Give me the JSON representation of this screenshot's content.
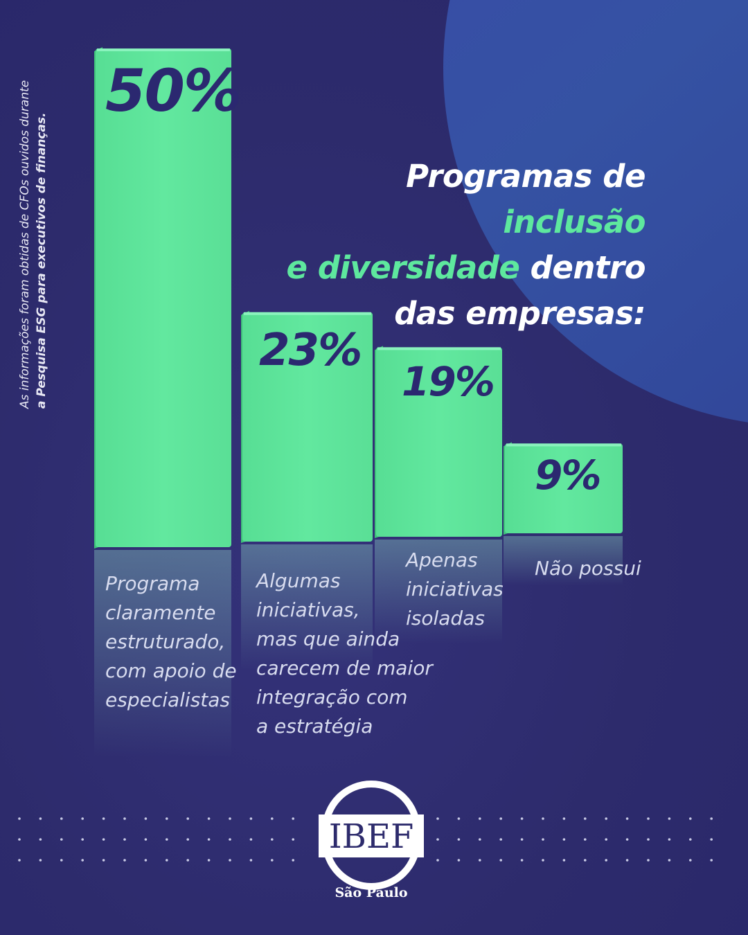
{
  "side_note": {
    "line1": "As informações foram obtidas de CFOs ouvidos durante",
    "line2": "a Pesquisa ESG para executivos de finanças."
  },
  "title": {
    "part1": "Programas de ",
    "highlight1": "inclusão",
    "part2": "e diversidade",
    "part3": " dentro",
    "part4": "das empresas:"
  },
  "chart_data": {
    "type": "bar",
    "categories": [
      "Programa claramente estruturado, com apoio de especialistas",
      "Algumas iniciativas, mas que ainda carecem de maior integração com a estratégia",
      "Apenas iniciativas isoladas",
      "Não possui"
    ],
    "values": [
      50,
      23,
      19,
      9
    ],
    "value_labels": [
      "50%",
      "23%",
      "19%",
      "9%"
    ],
    "category_labels_display": [
      "Programa\nclaramente\nestruturado,\ncom apoio de\nespecialistas",
      "Algumas\niniciativas,\nmas que ainda\ncarecem de maior\nintegração com\na estratégia",
      "Apenas\niniciativas\nisoladas",
      "Não possui"
    ],
    "unit": "%",
    "ylim": [
      0,
      50
    ],
    "grid": false,
    "colors": {
      "bar": "#5ee89e",
      "label": "#2b2870"
    }
  },
  "logo": {
    "text": "IBEF",
    "subtitle": "São Paulo"
  },
  "colors": {
    "background": "#2d2b6c",
    "accent": "#5ee89e",
    "blob": "#3552a3"
  }
}
